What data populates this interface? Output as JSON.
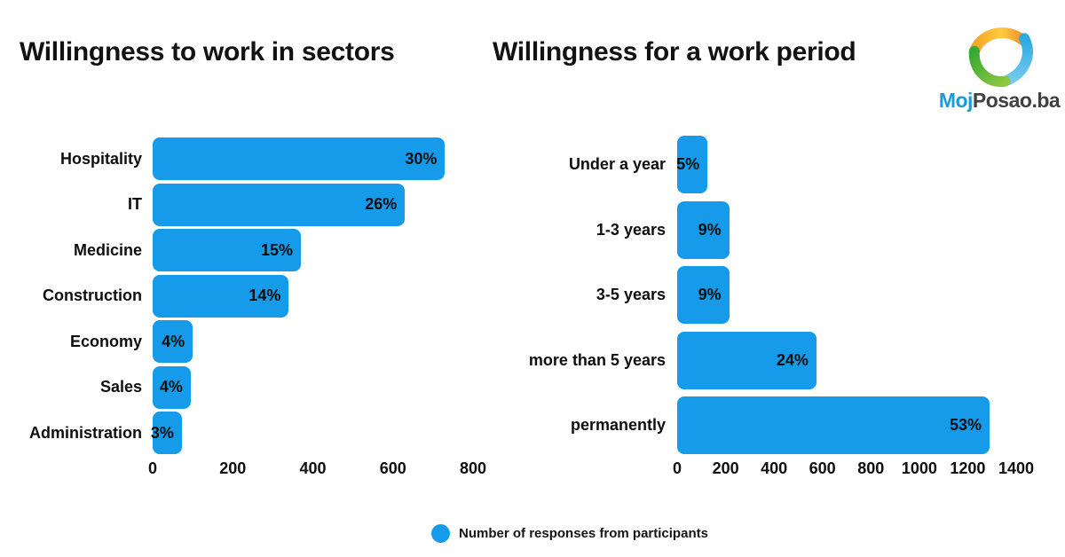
{
  "titles": {
    "left": "Willingness to work in sectors",
    "right": "Willingness for a work period"
  },
  "logo": {
    "moj": "Moj",
    "posao": "Posao.ba",
    "moj_color": "#1b9ad7",
    "posao_color": "#414042",
    "icon_colors": {
      "orange": "#f6a423",
      "yellow": "#fdcb3f",
      "blue": "#2ba9e1",
      "light_blue": "#74c9ee",
      "green": "#39a935",
      "light_green": "#8dc63f"
    }
  },
  "legend": {
    "label": "Number of responses from participants",
    "color": "#159be9"
  },
  "bar_color": "#159be9",
  "chart_data": [
    {
      "type": "bar",
      "orientation": "horizontal",
      "title": "Willingness to work in sectors",
      "categories": [
        "Hospitality",
        "IT",
        "Medicine",
        "Construction",
        "Economy",
        "Sales",
        "Administration"
      ],
      "values": [
        730,
        630,
        370,
        340,
        100,
        95,
        73
      ],
      "value_labels": [
        "30%",
        "26%",
        "15%",
        "14%",
        "4%",
        "4%",
        "3%"
      ],
      "xlabel": "Number of responses from participants",
      "ylabel": "",
      "xlim": [
        0,
        800
      ],
      "xticks": [
        0,
        200,
        400,
        600,
        800
      ],
      "grid": false,
      "legend_position": "bottom-center"
    },
    {
      "type": "bar",
      "orientation": "horizontal",
      "title": "Willingness for a work period",
      "categories": [
        "Under a year",
        "1-3 years",
        "3-5 years",
        "more than 5 years",
        "permanently"
      ],
      "values": [
        125,
        215,
        215,
        575,
        1290
      ],
      "value_labels": [
        "5%",
        "9%",
        "9%",
        "24%",
        "53%"
      ],
      "xlabel": "Number of responses from participants",
      "ylabel": "",
      "xlim": [
        0,
        1400
      ],
      "xticks": [
        0,
        200,
        400,
        600,
        800,
        1000,
        1200,
        1400
      ],
      "grid": false,
      "legend_position": "bottom-center"
    }
  ]
}
